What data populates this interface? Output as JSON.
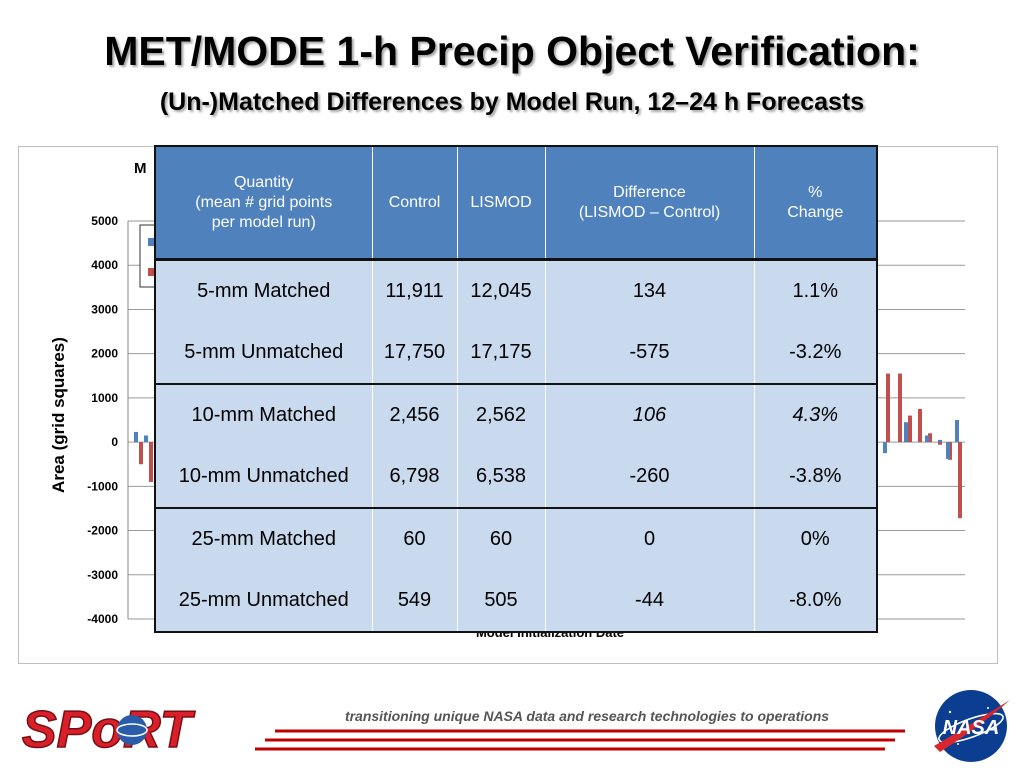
{
  "title": {
    "main": "MET/MODE 1-h Precip Object Verification:",
    "sub": "(Un-)Matched Differences by Model Run, 12–24 h Forecasts"
  },
  "chart": {
    "partial_title": "M",
    "ylabel": "Area (grid squares)",
    "xlabel": "Model Initialization  Date"
  },
  "chart_data": {
    "type": "bar",
    "ylabel": "Area (grid squares)",
    "xlabel": "Model Initialization  Date",
    "ylim": [
      -4000,
      5000
    ],
    "yticks": [
      5000,
      4000,
      3000,
      2000,
      1000,
      0,
      -1000,
      -2000,
      -3000,
      -4000
    ],
    "grid": true,
    "legend": "top-left (partially hidden)",
    "series": [
      {
        "color": "#4f81bd",
        "visible_left": [
          230,
          150
        ],
        "visible_right": [
          -250,
          450,
          150,
          50,
          -380,
          500
        ]
      },
      {
        "color": "#c0504d",
        "visible_left": [
          -500,
          -900
        ],
        "visible_right": [
          1550,
          1550,
          600,
          750,
          200,
          -60,
          -400,
          -1720
        ]
      }
    ]
  },
  "table": {
    "headers": [
      "Quantity\n(mean # grid points\nper model run)",
      "Control",
      "LISMOD",
      "Difference\n(LISMOD – Control)",
      "%\nChange"
    ],
    "rows": [
      {
        "quantity": "5-mm Matched",
        "control": "11,911",
        "lismod": "12,045",
        "difference": "134",
        "change": "1.1%"
      },
      {
        "quantity": "5-mm Unmatched",
        "control": "17,750",
        "lismod": "17,175",
        "difference": "-575",
        "change": "-3.2%"
      },
      {
        "quantity": "10-mm Matched",
        "control": "2,456",
        "lismod": "2,562",
        "difference": "106",
        "change": "4.3%"
      },
      {
        "quantity": "10-mm Unmatched",
        "control": "6,798",
        "lismod": "6,538",
        "difference": "-260",
        "change": "-3.8%"
      },
      {
        "quantity": "25-mm Matched",
        "control": "60",
        "lismod": "60",
        "difference": "0",
        "change": "0%"
      },
      {
        "quantity": "25-mm Unmatched",
        "control": "549",
        "lismod": "505",
        "difference": "-44",
        "change": "-8.0%"
      }
    ]
  },
  "footer": {
    "logo_text": "SPoRT",
    "tagline": "transitioning unique NASA data and research technologies to operations",
    "nasa_text": "NASA"
  },
  "colors": {
    "header_blue": "#4f81bd",
    "cell_blue": "#c9d9ee",
    "negative_red": "#e00000",
    "sport_red": "#d9202a",
    "nasa_blue": "#0b3d91"
  }
}
